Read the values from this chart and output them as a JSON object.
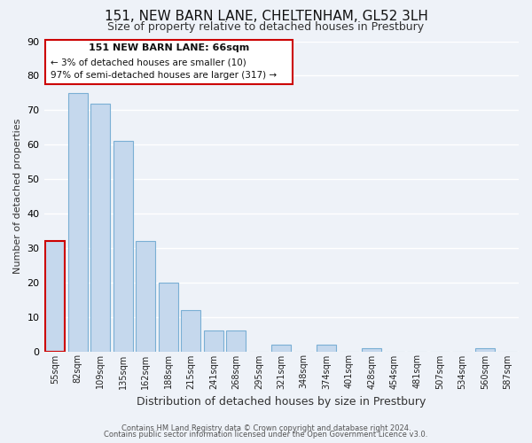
{
  "title": "151, NEW BARN LANE, CHELTENHAM, GL52 3LH",
  "subtitle": "Size of property relative to detached houses in Prestbury",
  "xlabel": "Distribution of detached houses by size in Prestbury",
  "ylabel": "Number of detached properties",
  "categories": [
    "55sqm",
    "82sqm",
    "109sqm",
    "135sqm",
    "162sqm",
    "188sqm",
    "215sqm",
    "241sqm",
    "268sqm",
    "295sqm",
    "321sqm",
    "348sqm",
    "374sqm",
    "401sqm",
    "428sqm",
    "454sqm",
    "481sqm",
    "507sqm",
    "534sqm",
    "560sqm",
    "587sqm"
  ],
  "values": [
    32,
    75,
    72,
    61,
    32,
    20,
    12,
    6,
    6,
    0,
    2,
    0,
    2,
    0,
    1,
    0,
    0,
    0,
    0,
    1,
    0
  ],
  "bar_color": "#c5d8ed",
  "bar_edge_color": "#7aafd4",
  "highlight_bar_index": 0,
  "highlight_color": "#c5d8ed",
  "highlight_edge_color": "#cc0000",
  "ylim": [
    0,
    90
  ],
  "yticks": [
    0,
    10,
    20,
    30,
    40,
    50,
    60,
    70,
    80,
    90
  ],
  "annotation_title": "151 NEW BARN LANE: 66sqm",
  "annotation_line1": "← 3% of detached houses are smaller (10)",
  "annotation_line2": "97% of semi-detached houses are larger (317) →",
  "annotation_box_edge": "#cc0000",
  "footer_line1": "Contains HM Land Registry data © Crown copyright and database right 2024.",
  "footer_line2": "Contains public sector information licensed under the Open Government Licence v3.0.",
  "background_color": "#eef2f8",
  "grid_color": "#ffffff",
  "title_fontsize": 11,
  "subtitle_fontsize": 9,
  "ylabel_fontsize": 8,
  "xlabel_fontsize": 9,
  "tick_fontsize": 7,
  "ytick_fontsize": 8,
  "footer_fontsize": 6
}
